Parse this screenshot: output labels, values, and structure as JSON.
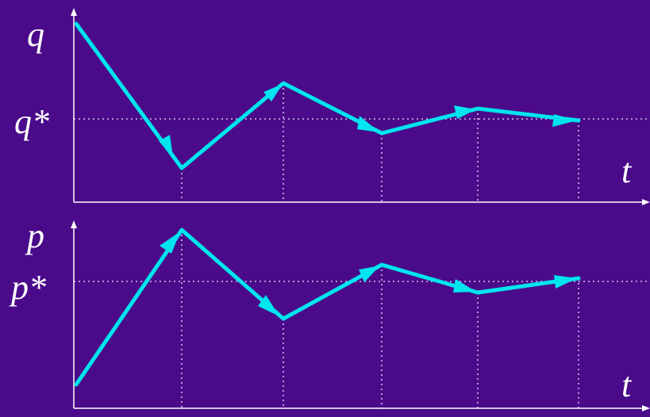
{
  "colors": {
    "background": "#4a0a8a",
    "trajectory": "#00e5ee",
    "axes": "#ffffff"
  },
  "top_panel": {
    "axis_label_y": "q",
    "equilibrium_label": "q*",
    "axis_label_x": "t"
  },
  "bottom_panel": {
    "axis_label_y": "p",
    "equilibrium_label": "p*",
    "axis_label_x": "t"
  }
}
